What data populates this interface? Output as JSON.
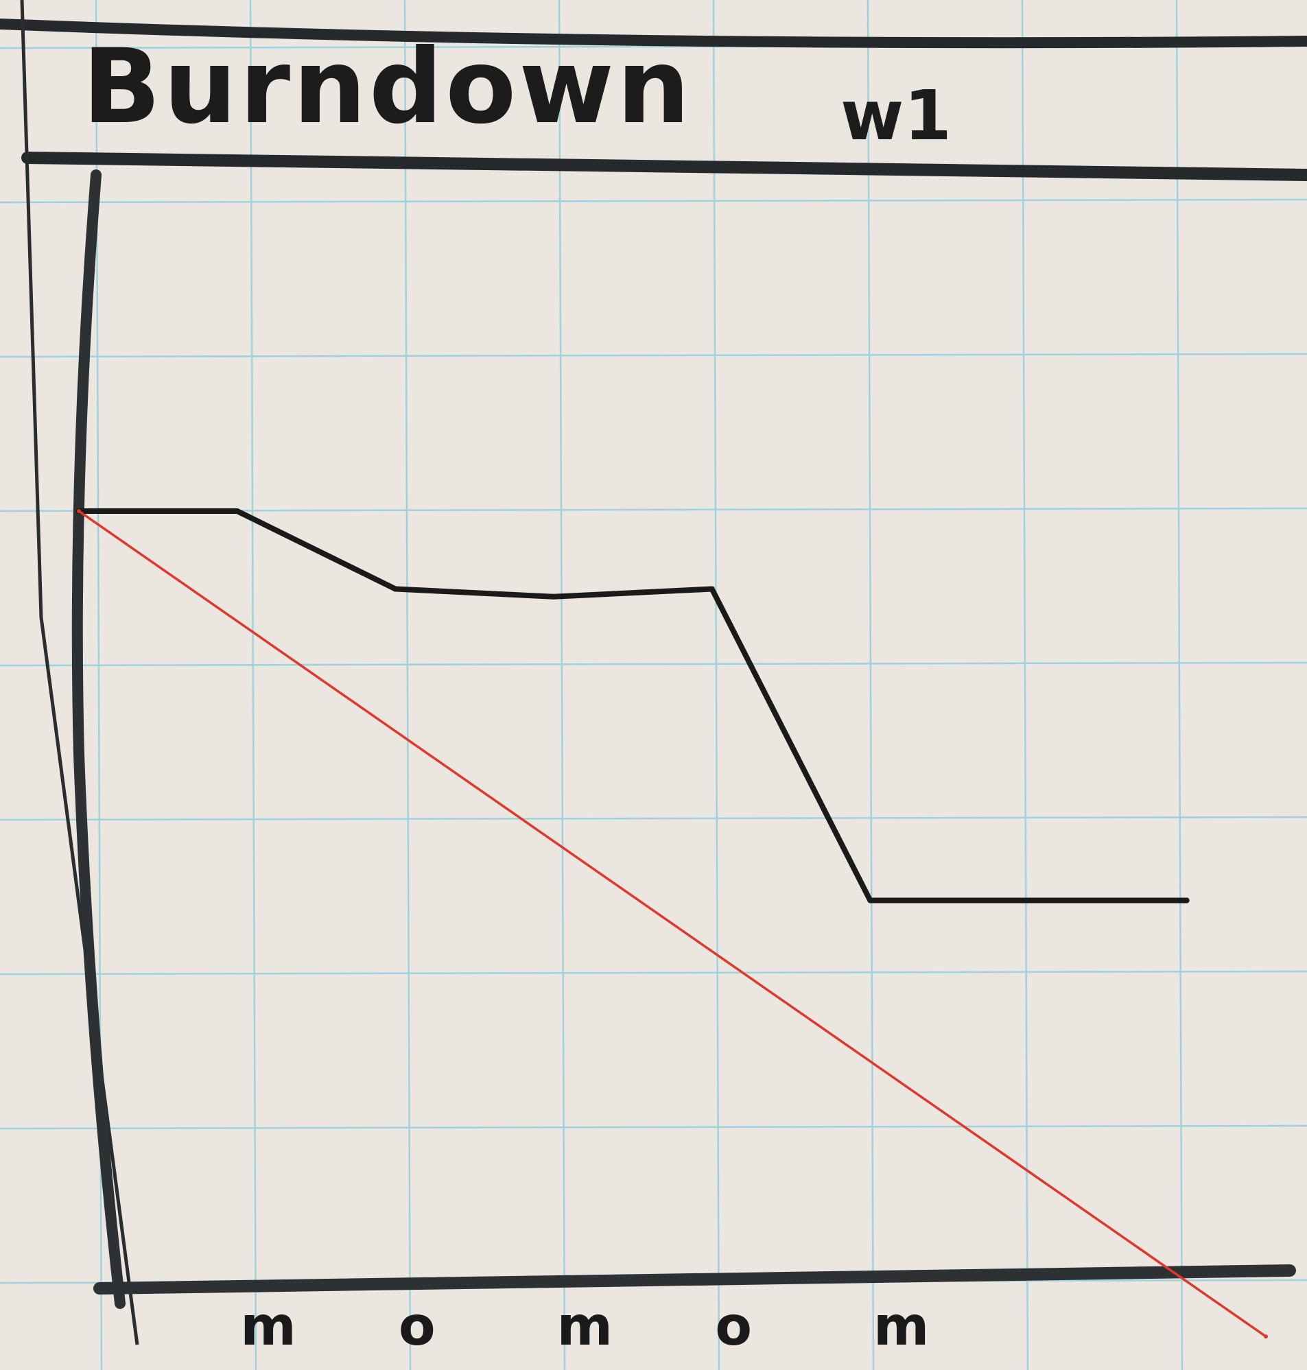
{
  "chart_data": {
    "type": "line",
    "title": "Burndown",
    "title_suffix": "w1",
    "x": [
      0,
      1,
      2,
      3,
      4,
      5,
      6,
      7
    ],
    "x_tick_labels": [
      "m",
      "o",
      "m",
      "o",
      "m"
    ],
    "xlim": [
      0,
      7.5
    ],
    "ylim": [
      0,
      8
    ],
    "grid": true,
    "series": [
      {
        "line": "actual",
        "color": "#1a1a1a",
        "x": [
          0,
          1,
          2,
          3,
          4,
          5,
          6,
          7
        ],
        "values": [
          5,
          5,
          4.5,
          4.45,
          4.5,
          2.5,
          2.5,
          2.5
        ]
      },
      {
        "line": "ideal",
        "color": "#e0382c",
        "x": [
          0,
          7.5
        ],
        "values": [
          5,
          -0.3
        ]
      }
    ]
  }
}
